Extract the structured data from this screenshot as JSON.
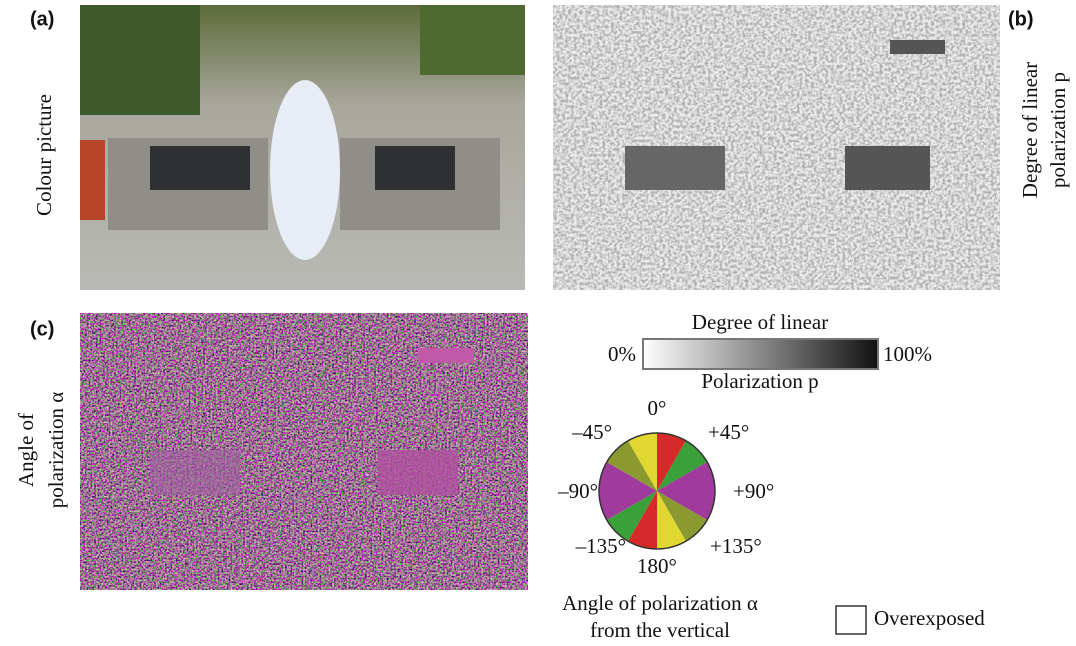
{
  "panels": [
    {
      "label": "(a)",
      "caption": [
        "Colour picture"
      ]
    },
    {
      "label": "(b)",
      "caption": [
        "Degree of linear",
        "polarization p"
      ]
    },
    {
      "label": "(c)",
      "caption": [
        "Angle of",
        "polarization α"
      ]
    }
  ],
  "colorbar": {
    "title": "Degree of linear",
    "min_label": "0%",
    "max_label": "100%",
    "subtitle": "Polarization p"
  },
  "angle_wheel": {
    "labels": [
      "0°",
      "+45°",
      "+90°",
      "+135°",
      "180°",
      "–135°",
      "–90°",
      "–45°"
    ],
    "caption": [
      "Angle of polarization α",
      "from the vertical"
    ]
  },
  "legend": {
    "label": "Overexposed"
  }
}
